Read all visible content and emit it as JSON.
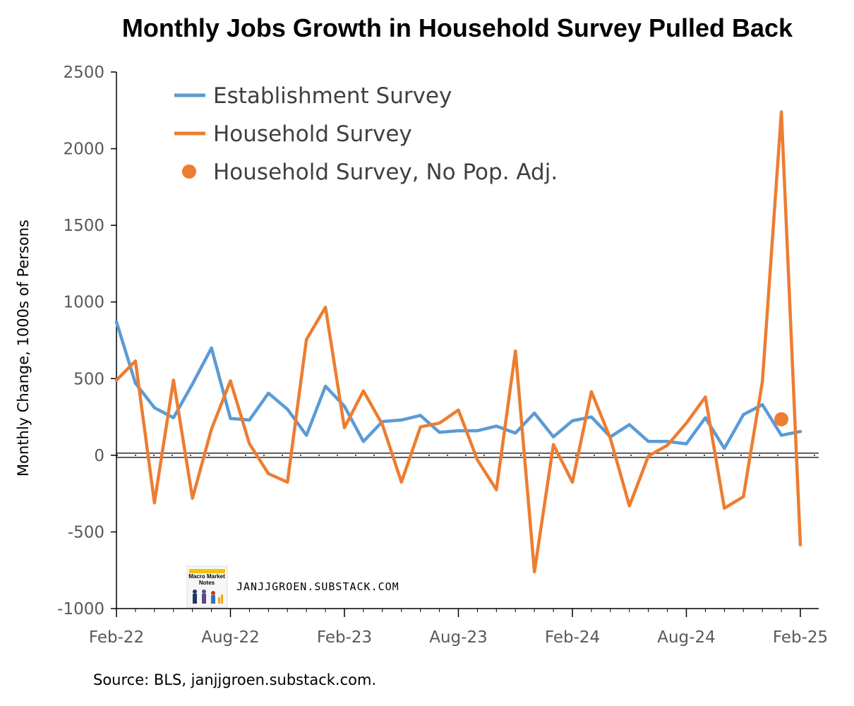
{
  "chart_data": {
    "type": "line",
    "title": "Monthly Jobs Growth in Household Survey Pulled Back",
    "xlabel": "",
    "ylabel": "Monthly Change, 1000s of Persons",
    "ylim": [
      -1000,
      2500
    ],
    "yticks": [
      2500,
      2000,
      1500,
      1000,
      500,
      0,
      -500,
      -1000
    ],
    "xlim": [
      "2022-02",
      "2025-02"
    ],
    "xticks": [
      {
        "label": "Feb-22",
        "x": "2022-02"
      },
      {
        "label": "Aug-22",
        "x": "2022-08"
      },
      {
        "label": "Feb-23",
        "x": "2023-02"
      },
      {
        "label": "Aug-23",
        "x": "2023-08"
      },
      {
        "label": "Feb-24",
        "x": "2024-02"
      },
      {
        "label": "Aug-24",
        "x": "2024-08"
      },
      {
        "label": "Feb-25",
        "x": "2025-02"
      }
    ],
    "x": [
      "2022-02",
      "2022-03",
      "2022-04",
      "2022-05",
      "2022-06",
      "2022-07",
      "2022-08",
      "2022-09",
      "2022-10",
      "2022-11",
      "2022-12",
      "2023-01",
      "2023-02",
      "2023-03",
      "2023-04",
      "2023-05",
      "2023-06",
      "2023-07",
      "2023-08",
      "2023-09",
      "2023-10",
      "2023-11",
      "2023-12",
      "2024-01",
      "2024-02",
      "2024-03",
      "2024-04",
      "2024-05",
      "2024-06",
      "2024-07",
      "2024-08",
      "2024-09",
      "2024-10",
      "2024-11",
      "2024-12",
      "2025-01",
      "2025-02"
    ],
    "series": [
      {
        "name": "Establishment Survey",
        "color": "#5b9bd5",
        "style": "line",
        "values": [
          870,
          470,
          310,
          245,
          465,
          700,
          240,
          230,
          405,
          300,
          130,
          450,
          320,
          90,
          220,
          230,
          260,
          150,
          160,
          160,
          190,
          145,
          275,
          120,
          225,
          250,
          120,
          200,
          90,
          90,
          75,
          245,
          45,
          265,
          330,
          130,
          155
        ]
      },
      {
        "name": "Household Survey",
        "color": "#ed7d31",
        "style": "line",
        "values": [
          490,
          615,
          -310,
          490,
          -280,
          170,
          485,
          75,
          -120,
          -175,
          755,
          965,
          180,
          420,
          200,
          -175,
          185,
          210,
          295,
          -30,
          -225,
          680,
          -760,
          70,
          -175,
          415,
          110,
          -330,
          -5,
          65,
          210,
          380,
          -345,
          -270,
          480,
          2240,
          -585
        ]
      },
      {
        "name": "Household Survey, No Pop. Adj.",
        "color": "#ed7d31",
        "style": "marker",
        "points": [
          {
            "x": "2025-01",
            "y": 235
          }
        ]
      }
    ],
    "legend": {
      "placement": "top-left"
    },
    "grid": false
  },
  "source_text": "Source: BLS, janjjgroen.substack.com.",
  "watermark": {
    "text": "JANJJGROEN.SUBSTACK.COM",
    "logo_text": [
      "Macro Market",
      "Notes"
    ]
  }
}
